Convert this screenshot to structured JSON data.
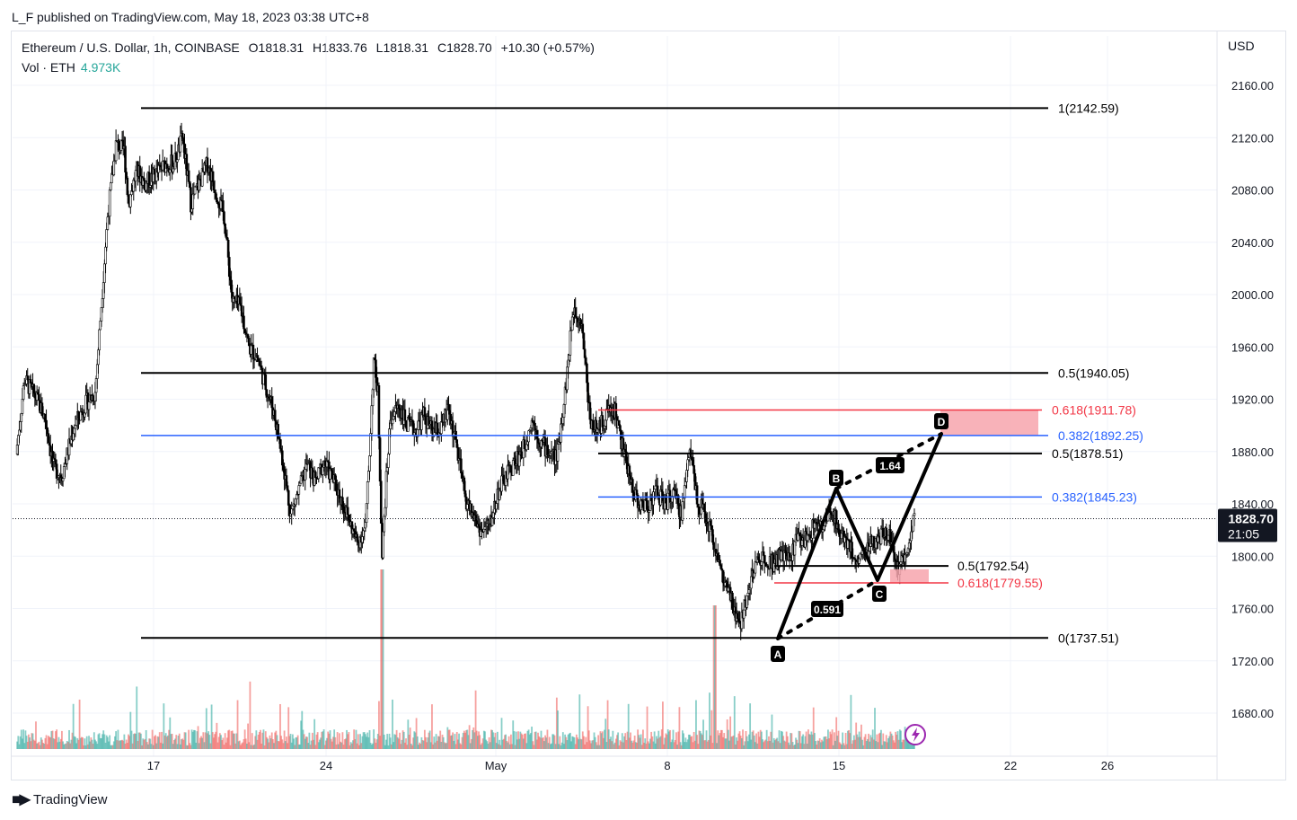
{
  "header": {
    "publisher": "L_F published on TradingView.com, May 18, 2023 03:38 UTC+8"
  },
  "legend": {
    "symbol": "Ethereum / U.S. Dollar, 1h, COINBASE",
    "open": "O1818.31",
    "high": "H1833.76",
    "low": "L1818.31",
    "close": "C1828.70",
    "change": "+10.30 (+0.57%)",
    "volume_label": "Vol · ETH",
    "volume_value": "4.973K"
  },
  "axis": {
    "currency": "USD"
  },
  "footer": {
    "brand": "TradingView"
  },
  "colors": {
    "up": "#26a69a",
    "down": "#ef5350",
    "black": "#000000",
    "blue": "#2962ff",
    "red": "#f23645",
    "pink_zone": "#f7a4ad",
    "price_label_bg": "#131722"
  },
  "chart_data": {
    "type": "candlestick",
    "symbol": "Ethereum / U.S. Dollar",
    "interval": "1h",
    "ylim": [
      1655,
      2180
    ],
    "y_ticks": [
      "2160.00",
      "2120.00",
      "2080.00",
      "2040.00",
      "2000.00",
      "1960.00",
      "1920.00",
      "1880.00",
      "1840.00",
      "1800.00",
      "1760.00",
      "1720.00",
      "1680.00"
    ],
    "x_ticks": [
      "17",
      "24",
      "May",
      "8",
      "15",
      "22",
      "26"
    ],
    "last_price": "1828.70",
    "countdown": "21:05",
    "price_path": [
      [
        0,
        1878
      ],
      [
        2,
        1935
      ],
      [
        5,
        1920
      ],
      [
        7,
        1905
      ],
      [
        9,
        1868
      ],
      [
        11,
        1862
      ],
      [
        14,
        1900
      ],
      [
        17,
        1918
      ],
      [
        19,
        1925
      ],
      [
        22,
        2060
      ],
      [
        24,
        2115
      ],
      [
        26,
        2110
      ],
      [
        27,
        2070
      ],
      [
        29,
        2095
      ],
      [
        31,
        2085
      ],
      [
        33,
        2090
      ],
      [
        36,
        2100
      ],
      [
        38,
        2100
      ],
      [
        40,
        2120
      ],
      [
        42,
        2070
      ],
      [
        44,
        2085
      ],
      [
        46,
        2100
      ],
      [
        48,
        2080
      ],
      [
        50,
        2060
      ],
      [
        52,
        1995
      ],
      [
        54,
        1990
      ],
      [
        56,
        1960
      ],
      [
        58,
        1952
      ],
      [
        60,
        1930
      ],
      [
        62,
        1910
      ],
      [
        64,
        1875
      ],
      [
        66,
        1832
      ],
      [
        68,
        1850
      ],
      [
        70,
        1870
      ],
      [
        72,
        1856
      ],
      [
        74,
        1872
      ],
      [
        76,
        1860
      ],
      [
        78,
        1845
      ],
      [
        80,
        1828
      ],
      [
        82,
        1810
      ],
      [
        84,
        1822
      ],
      [
        85,
        1880
      ],
      [
        86,
        1950
      ],
      [
        87,
        1925
      ],
      [
        88,
        1800
      ],
      [
        89,
        1858
      ],
      [
        90,
        1905
      ],
      [
        92,
        1915
      ],
      [
        94,
        1900
      ],
      [
        96,
        1896
      ],
      [
        98,
        1908
      ],
      [
        100,
        1895
      ],
      [
        102,
        1896
      ],
      [
        104,
        1912
      ],
      [
        106,
        1882
      ],
      [
        108,
        1844
      ],
      [
        110,
        1830
      ],
      [
        112,
        1818
      ],
      [
        114,
        1825
      ],
      [
        116,
        1850
      ],
      [
        118,
        1862
      ],
      [
        120,
        1872
      ],
      [
        122,
        1882
      ],
      [
        124,
        1905
      ],
      [
        126,
        1888
      ],
      [
        128,
        1880
      ],
      [
        130,
        1875
      ],
      [
        132,
        1925
      ],
      [
        134,
        1990
      ],
      [
        136,
        1980
      ],
      [
        138,
        1905
      ],
      [
        140,
        1895
      ],
      [
        142,
        1910
      ],
      [
        144,
        1912
      ],
      [
        146,
        1880
      ],
      [
        148,
        1855
      ],
      [
        150,
        1838
      ],
      [
        152,
        1840
      ],
      [
        154,
        1850
      ],
      [
        156,
        1840
      ],
      [
        158,
        1848
      ],
      [
        160,
        1832
      ],
      [
        162,
        1885
      ],
      [
        164,
        1840
      ],
      [
        166,
        1830
      ],
      [
        168,
        1808
      ],
      [
        170,
        1782
      ],
      [
        172,
        1765
      ],
      [
        174,
        1745
      ],
      [
        176,
        1775
      ],
      [
        178,
        1795
      ],
      [
        180,
        1800
      ],
      [
        182,
        1795
      ],
      [
        184,
        1800
      ],
      [
        186,
        1798
      ],
      [
        188,
        1815
      ],
      [
        190,
        1812
      ],
      [
        192,
        1825
      ],
      [
        194,
        1820
      ],
      [
        196,
        1838
      ],
      [
        198,
        1818
      ],
      [
        200,
        1812
      ],
      [
        202,
        1795
      ],
      [
        204,
        1805
      ],
      [
        206,
        1810
      ],
      [
        208,
        1814
      ],
      [
        210,
        1820
      ],
      [
        212,
        1790
      ],
      [
        214,
        1805
      ],
      [
        216,
        1828.7
      ]
    ],
    "fib_levels": [
      {
        "label": "1(2142.59)",
        "price": 2142.59,
        "color": "black"
      },
      {
        "label": "0.5(1940.05)",
        "price": 1940.05,
        "color": "black"
      },
      {
        "label": "0(1737.51)",
        "price": 1737.51,
        "color": "black"
      },
      {
        "label": "0.618(1911.78)",
        "price": 1911.78,
        "color": "red"
      },
      {
        "label": "0.382(1892.25)",
        "price": 1892.25,
        "color": "blue"
      },
      {
        "label": "0.5(1878.51)",
        "price": 1878.51,
        "color": "black"
      },
      {
        "label": "0.382(1845.23)",
        "price": 1845.23,
        "color": "blue"
      },
      {
        "label": "0.5(1792.54)",
        "price": 1792.54,
        "color": "black"
      },
      {
        "label": "0.618(1779.55)",
        "price": 1779.55,
        "color": "red"
      }
    ],
    "abcd_pattern": {
      "points": [
        {
          "label": "A",
          "price": 1737.51
        },
        {
          "label": "B",
          "price": 1850
        },
        {
          "label": "C",
          "price": 1782
        },
        {
          "label": "D",
          "price": 1892.25
        }
      ],
      "ratios": [
        "0.591",
        "1.64"
      ]
    },
    "target_zones": [
      {
        "from": 1892.25,
        "to": 1911.78,
        "color": "pink"
      },
      {
        "from": 1779.55,
        "to": 1790,
        "color": "pink"
      }
    ]
  }
}
